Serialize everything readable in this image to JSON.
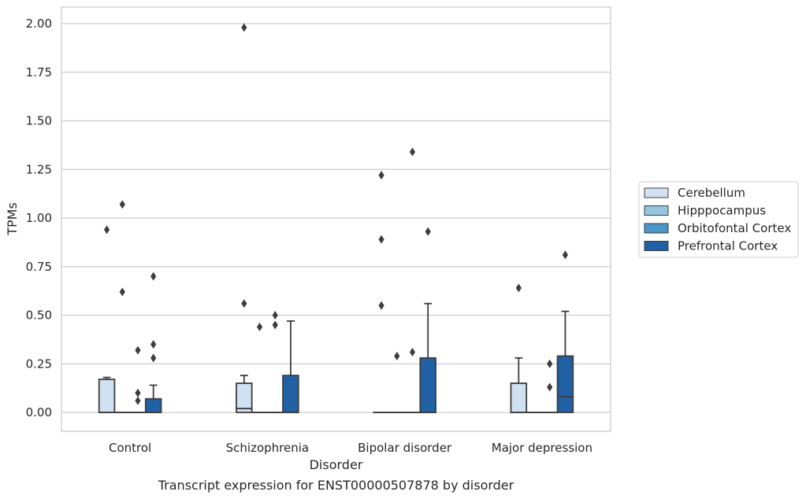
{
  "chart_data": {
    "type": "box",
    "caption": "Transcript expression for ENST00000507878 by disorder",
    "xlabel": "Disorder",
    "ylabel": "TPMs",
    "ylim": [
      -0.1,
      2.08
    ],
    "yticks": [
      0.0,
      0.25,
      0.5,
      0.75,
      1.0,
      1.25,
      1.5,
      1.75,
      2.0
    ],
    "ytick_labels": [
      "0.00",
      "0.25",
      "0.50",
      "0.75",
      "1.00",
      "1.25",
      "1.50",
      "1.75",
      "2.00"
    ],
    "grid": "horizontal",
    "legend_position": "right",
    "categories": [
      "Control",
      "Schizophrenia",
      "Bipolar disorder",
      "Major depression"
    ],
    "series": [
      {
        "name": "Cerebellum",
        "color": "#d0e1f2",
        "boxes": [
          {
            "q1": 0.0,
            "median": 0.0,
            "q3": 0.17,
            "whisker_low": 0.0,
            "whisker_high": 0.18,
            "outliers": [
              0.94
            ]
          },
          {
            "q1": 0.0,
            "median": 0.02,
            "q3": 0.15,
            "whisker_low": 0.0,
            "whisker_high": 0.19,
            "outliers": [
              1.98,
              0.56
            ]
          },
          {
            "q1": 0.0,
            "median": 0.0,
            "q3": 0.0,
            "whisker_low": 0.0,
            "whisker_high": 0.0,
            "outliers": [
              1.22,
              0.89,
              0.55
            ]
          },
          {
            "q1": 0.0,
            "median": 0.0,
            "q3": 0.15,
            "whisker_low": 0.0,
            "whisker_high": 0.28,
            "outliers": [
              0.64
            ]
          }
        ]
      },
      {
        "name": "Hipppocampus",
        "color": "#94c4df",
        "boxes": [
          {
            "q1": 0.0,
            "median": 0.0,
            "q3": 0.0,
            "whisker_low": 0.0,
            "whisker_high": 0.0,
            "outliers": [
              1.07,
              0.62
            ]
          },
          {
            "q1": 0.0,
            "median": 0.0,
            "q3": 0.0,
            "whisker_low": 0.0,
            "whisker_high": 0.0,
            "outliers": [
              0.44
            ]
          },
          {
            "q1": 0.0,
            "median": 0.0,
            "q3": 0.0,
            "whisker_low": 0.0,
            "whisker_high": 0.0,
            "outliers": [
              0.29
            ]
          },
          {
            "q1": 0.0,
            "median": 0.0,
            "q3": 0.0,
            "whisker_low": 0.0,
            "whisker_high": 0.0,
            "outliers": []
          }
        ]
      },
      {
        "name": "Orbitofontal Cortex",
        "color": "#4a98c9",
        "boxes": [
          {
            "q1": 0.0,
            "median": 0.0,
            "q3": 0.0,
            "whisker_low": 0.0,
            "whisker_high": 0.0,
            "outliers": [
              0.32,
              0.1,
              0.06
            ]
          },
          {
            "q1": 0.0,
            "median": 0.0,
            "q3": 0.0,
            "whisker_low": 0.0,
            "whisker_high": 0.0,
            "outliers": [
              0.5,
              0.45
            ]
          },
          {
            "q1": 0.0,
            "median": 0.0,
            "q3": 0.0,
            "whisker_low": 0.0,
            "whisker_high": 0.0,
            "outliers": [
              1.34,
              0.31
            ]
          },
          {
            "q1": 0.0,
            "median": 0.0,
            "q3": 0.0,
            "whisker_low": 0.0,
            "whisker_high": 0.0,
            "outliers": [
              0.25,
              0.13
            ]
          }
        ]
      },
      {
        "name": "Prefrontal Cortex",
        "color": "#2060a4",
        "boxes": [
          {
            "q1": 0.0,
            "median": 0.0,
            "q3": 0.07,
            "whisker_low": 0.0,
            "whisker_high": 0.14,
            "outliers": [
              0.7,
              0.35,
              0.28
            ]
          },
          {
            "q1": 0.0,
            "median": 0.0,
            "q3": 0.19,
            "whisker_low": 0.0,
            "whisker_high": 0.47,
            "outliers": []
          },
          {
            "q1": 0.0,
            "median": 0.0,
            "q3": 0.28,
            "whisker_low": 0.0,
            "whisker_high": 0.56,
            "outliers": [
              0.93
            ]
          },
          {
            "q1": 0.0,
            "median": 0.08,
            "q3": 0.29,
            "whisker_low": 0.0,
            "whisker_high": 0.52,
            "outliers": [
              0.81
            ]
          }
        ]
      }
    ]
  }
}
